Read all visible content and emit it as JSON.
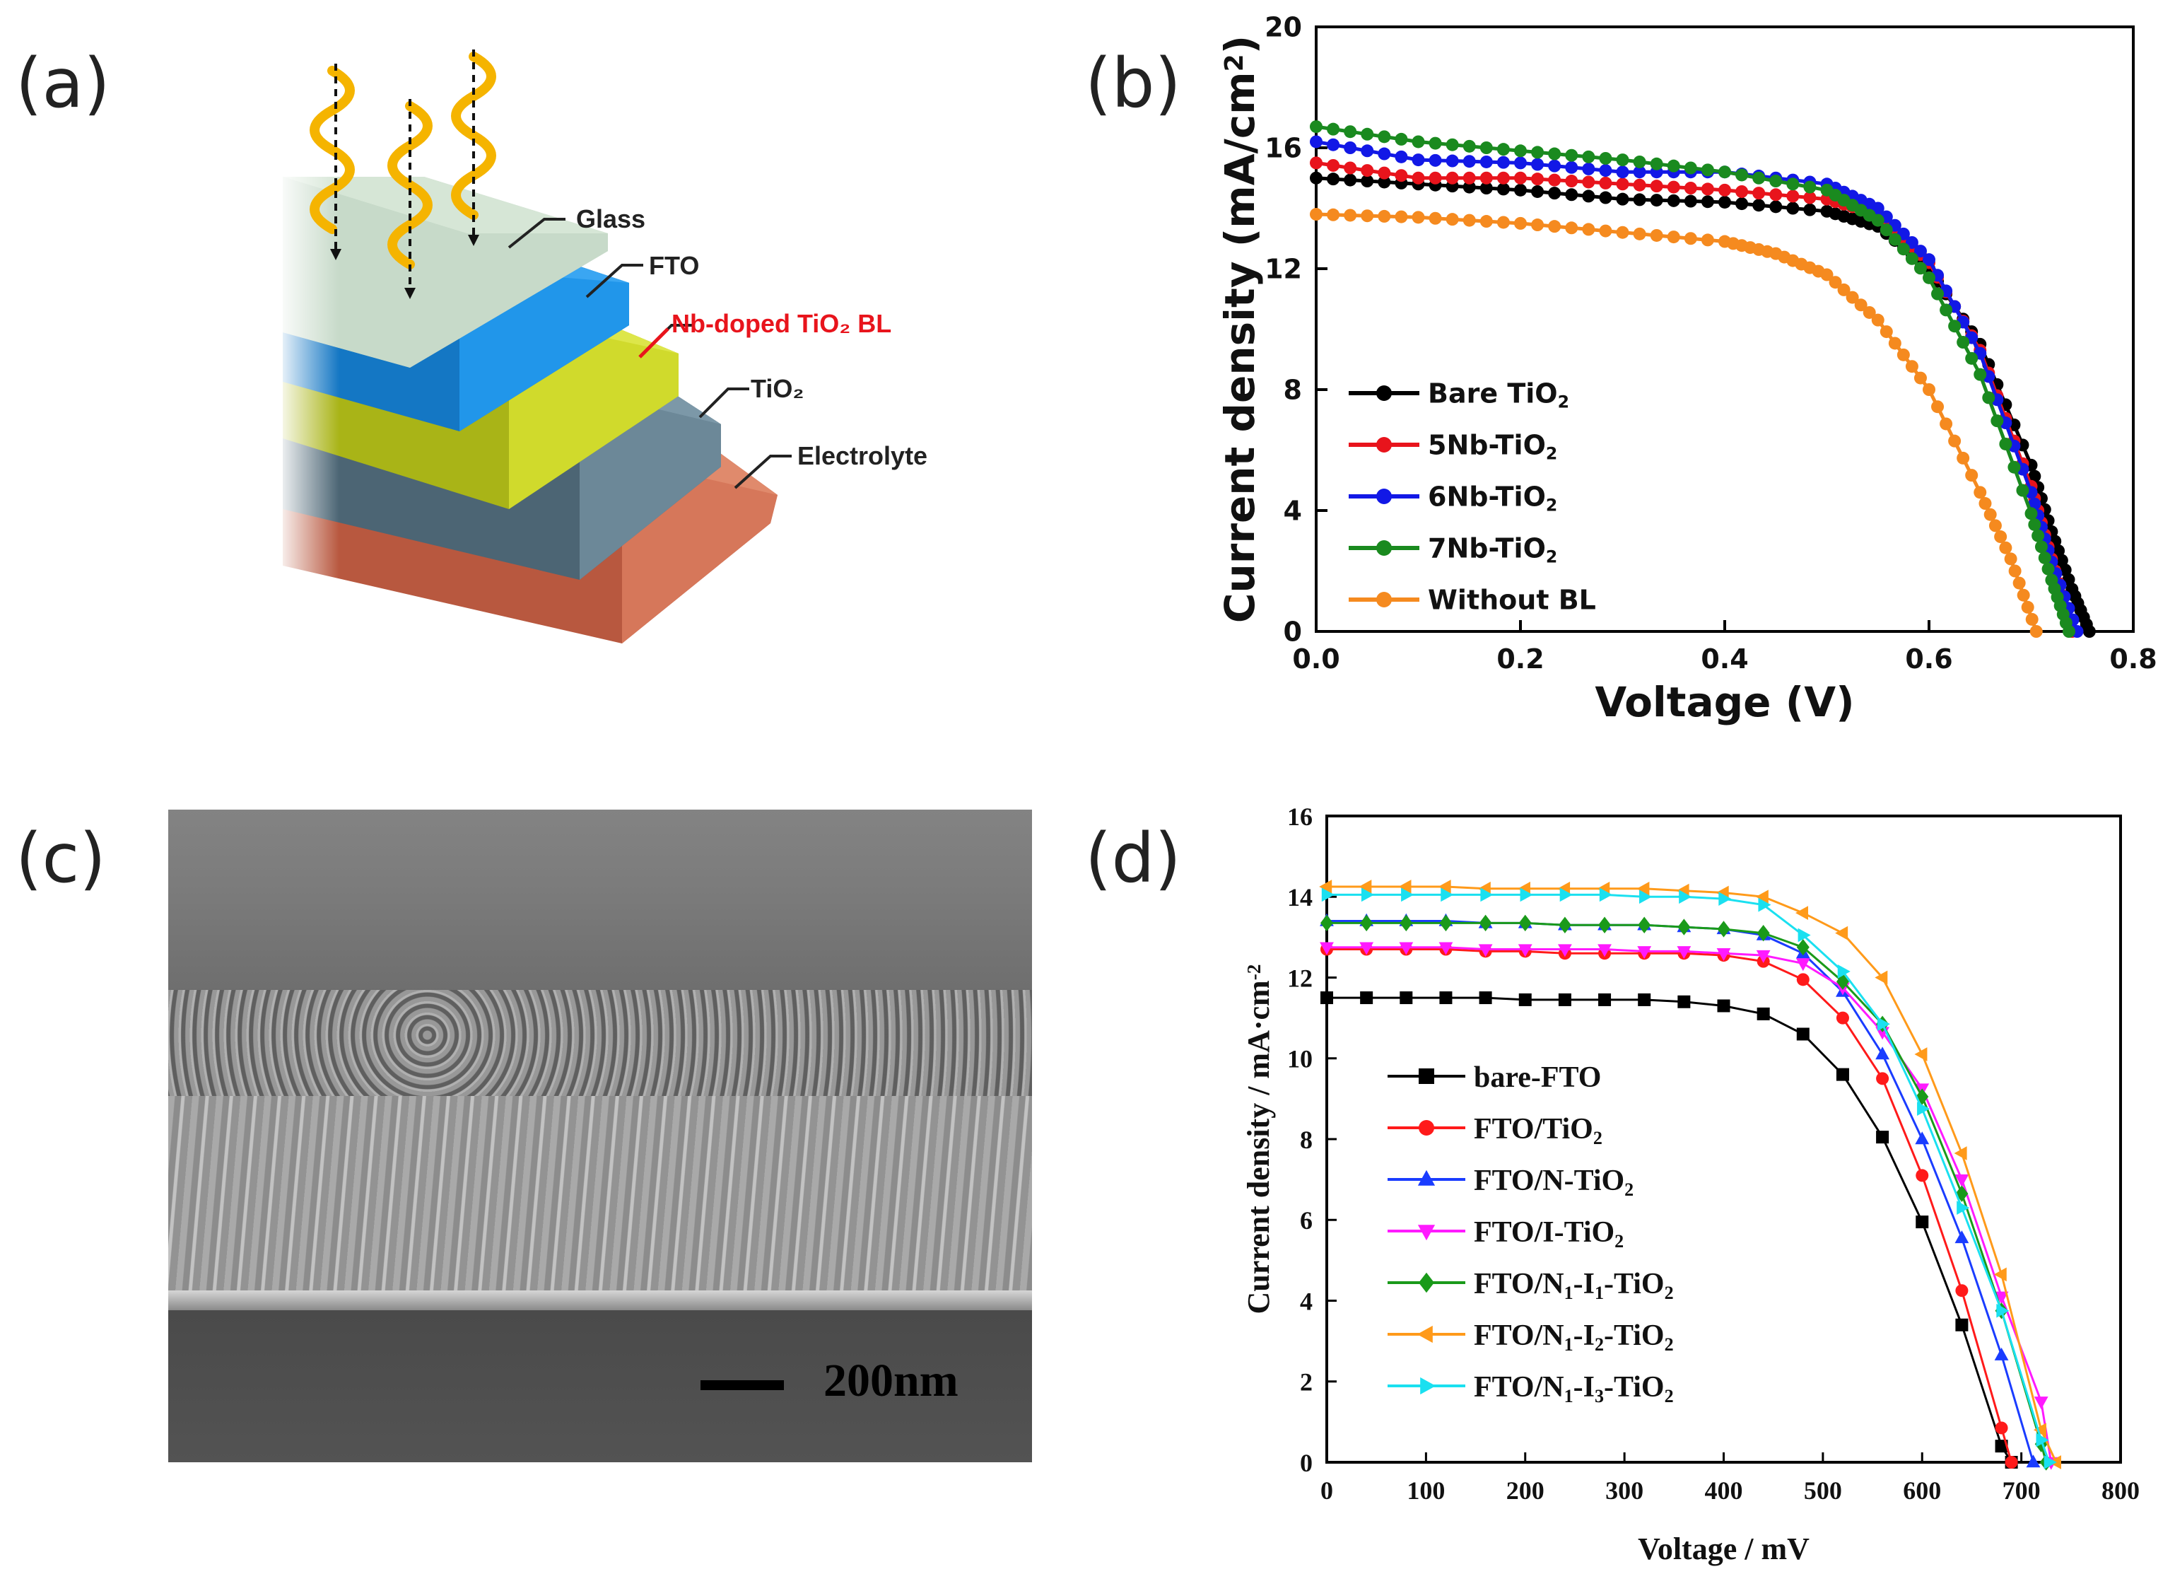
{
  "panels": {
    "a": {
      "label": "(a)",
      "layers": {
        "glass": "Glass",
        "fto": "FTO",
        "blocking": "Nb-doped TiO₂ BL",
        "tio2": "TiO₂",
        "electrolyte": "Electrolyte"
      }
    },
    "b": {
      "label": "(b)"
    },
    "c": {
      "label": "(c)",
      "scale_bar": "200nm"
    },
    "d": {
      "label": "(d)"
    }
  },
  "colors": {
    "glass": "#c9dccb",
    "fto": "#1e8fe0",
    "blocking": "#c8d21a",
    "tio2": "#5a7585",
    "electrolyte": "#d06a4e",
    "wave": "#f5b400"
  },
  "chart_data": [
    {
      "panel": "b",
      "type": "line",
      "xlabel": "Voltage (V)",
      "ylabel": "Current density (mA/cm²)",
      "xlim": [
        0,
        0.8
      ],
      "ylim": [
        0,
        20
      ],
      "xticks": [
        "0.0",
        "0.2",
        "0.4",
        "0.6",
        "0.8"
      ],
      "yticks": [
        "0",
        "4",
        "8",
        "12",
        "16",
        "20"
      ],
      "legend_position": "lower-left",
      "series": [
        {
          "name": "Bare TiO₂",
          "color": "#000000",
          "x": [
            0,
            0.1,
            0.2,
            0.3,
            0.4,
            0.5,
            0.55,
            0.6,
            0.65,
            0.7,
            0.72,
            0.74,
            0.757
          ],
          "y": [
            15.0,
            14.8,
            14.6,
            14.3,
            14.2,
            13.9,
            13.4,
            12.0,
            9.5,
            5.5,
            3.3,
            1.4,
            0
          ]
        },
        {
          "name": "5Nb-TiO₂",
          "color": "#e8141c",
          "x": [
            0,
            0.1,
            0.2,
            0.3,
            0.4,
            0.5,
            0.55,
            0.6,
            0.65,
            0.7,
            0.72,
            0.74
          ],
          "y": [
            15.5,
            15.0,
            15.0,
            14.8,
            14.6,
            14.3,
            13.8,
            12.2,
            9.3,
            4.8,
            2.4,
            0
          ]
        },
        {
          "name": "6Nb-TiO₂",
          "color": "#1218e6",
          "x": [
            0,
            0.1,
            0.2,
            0.3,
            0.4,
            0.5,
            0.55,
            0.6,
            0.65,
            0.7,
            0.72,
            0.745
          ],
          "y": [
            16.2,
            15.6,
            15.5,
            15.2,
            15.2,
            14.8,
            14.0,
            12.3,
            9.2,
            4.6,
            2.3,
            0
          ]
        },
        {
          "name": "7Nb-TiO₂",
          "color": "#1a8a1f",
          "x": [
            0,
            0.1,
            0.2,
            0.3,
            0.4,
            0.5,
            0.55,
            0.6,
            0.65,
            0.7,
            0.72,
            0.737
          ],
          "y": [
            16.7,
            16.2,
            15.9,
            15.6,
            15.2,
            14.6,
            13.6,
            11.7,
            8.5,
            3.9,
            1.7,
            0
          ]
        },
        {
          "name": "Without BL",
          "color": "#f58a1f",
          "x": [
            0,
            0.1,
            0.2,
            0.3,
            0.4,
            0.45,
            0.5,
            0.55,
            0.6,
            0.65,
            0.68,
            0.705
          ],
          "y": [
            13.8,
            13.7,
            13.5,
            13.2,
            12.9,
            12.5,
            11.8,
            10.3,
            8.0,
            4.6,
            2.4,
            0
          ]
        }
      ]
    },
    {
      "panel": "d",
      "type": "line",
      "xlabel": "Voltage / mV",
      "ylabel": "Current density / mA·cm⁻²",
      "xlim": [
        0,
        800
      ],
      "ylim": [
        0,
        16
      ],
      "xticks": [
        "0",
        "100",
        "200",
        "300",
        "400",
        "500",
        "600",
        "700",
        "800"
      ],
      "yticks": [
        "0",
        "2",
        "4",
        "6",
        "8",
        "10",
        "12",
        "14",
        "16"
      ],
      "legend_position": "lower-left",
      "series": [
        {
          "name": "bare-FTO",
          "color": "#000000",
          "marker": "square",
          "x": [
            0,
            40,
            80,
            120,
            160,
            200,
            240,
            280,
            320,
            360,
            400,
            440,
            480,
            520,
            560,
            600,
            640,
            680,
            690
          ],
          "y": [
            11.5,
            11.5,
            11.5,
            11.5,
            11.5,
            11.45,
            11.45,
            11.45,
            11.45,
            11.4,
            11.3,
            11.1,
            10.6,
            9.6,
            8.05,
            5.95,
            3.4,
            0.4,
            0
          ]
        },
        {
          "name": "FTO/TiO₂",
          "color": "#ff1a1a",
          "marker": "circle",
          "x": [
            0,
            40,
            80,
            120,
            160,
            200,
            240,
            280,
            320,
            360,
            400,
            440,
            480,
            520,
            560,
            600,
            640,
            680,
            690
          ],
          "y": [
            12.7,
            12.7,
            12.7,
            12.7,
            12.65,
            12.65,
            12.6,
            12.6,
            12.6,
            12.6,
            12.55,
            12.4,
            11.95,
            11.0,
            9.5,
            7.1,
            4.25,
            0.85,
            0
          ]
        },
        {
          "name": "FTO/N-TiO₂",
          "color": "#1a3cff",
          "marker": "triangle-up",
          "x": [
            0,
            40,
            80,
            120,
            160,
            200,
            240,
            280,
            320,
            360,
            400,
            440,
            480,
            520,
            560,
            600,
            640,
            680,
            712
          ],
          "y": [
            13.4,
            13.4,
            13.4,
            13.4,
            13.35,
            13.35,
            13.3,
            13.3,
            13.3,
            13.25,
            13.2,
            13.05,
            12.6,
            11.65,
            10.1,
            8.0,
            5.55,
            2.65,
            0
          ]
        },
        {
          "name": "FTO/I-TiO₂",
          "color": "#ff1aff",
          "marker": "triangle-down",
          "x": [
            0,
            40,
            80,
            120,
            160,
            200,
            240,
            280,
            320,
            360,
            400,
            440,
            480,
            520,
            560,
            600,
            640,
            680,
            720,
            730
          ],
          "y": [
            12.75,
            12.75,
            12.75,
            12.75,
            12.7,
            12.7,
            12.7,
            12.7,
            12.65,
            12.65,
            12.6,
            12.55,
            12.35,
            11.75,
            10.65,
            9.25,
            7.0,
            4.1,
            1.5,
            0
          ]
        },
        {
          "name": "FTO/N₁-I₁-TiO₂",
          "color": "#1a9a1a",
          "marker": "diamond",
          "x": [
            0,
            40,
            80,
            120,
            160,
            200,
            240,
            280,
            320,
            360,
            400,
            440,
            480,
            520,
            560,
            600,
            640,
            680,
            720,
            725
          ],
          "y": [
            13.35,
            13.35,
            13.35,
            13.35,
            13.35,
            13.35,
            13.3,
            13.3,
            13.3,
            13.25,
            13.2,
            13.1,
            12.75,
            11.9,
            10.85,
            9.05,
            6.65,
            3.75,
            0.45,
            0
          ]
        },
        {
          "name": "FTO/N₁-I₂-TiO₂",
          "color": "#ff9a1a",
          "marker": "triangle-left",
          "x": [
            0,
            40,
            80,
            120,
            160,
            200,
            240,
            280,
            320,
            360,
            400,
            440,
            480,
            520,
            560,
            600,
            640,
            680,
            720,
            735
          ],
          "y": [
            14.25,
            14.25,
            14.25,
            14.25,
            14.2,
            14.2,
            14.2,
            14.2,
            14.2,
            14.15,
            14.1,
            14.0,
            13.6,
            13.1,
            12.0,
            10.1,
            7.65,
            4.65,
            0.8,
            0
          ]
        },
        {
          "name": "FTO/N₁-I₃-TiO₂",
          "color": "#1ae0f0",
          "marker": "triangle-right",
          "x": [
            0,
            40,
            80,
            120,
            160,
            200,
            240,
            280,
            320,
            360,
            400,
            440,
            480,
            520,
            560,
            600,
            640,
            680,
            720,
            728
          ],
          "y": [
            14.05,
            14.05,
            14.05,
            14.05,
            14.05,
            14.05,
            14.05,
            14.05,
            14.0,
            14.0,
            13.95,
            13.8,
            13.05,
            12.15,
            10.85,
            8.75,
            6.3,
            3.75,
            0.55,
            0
          ]
        }
      ]
    }
  ]
}
